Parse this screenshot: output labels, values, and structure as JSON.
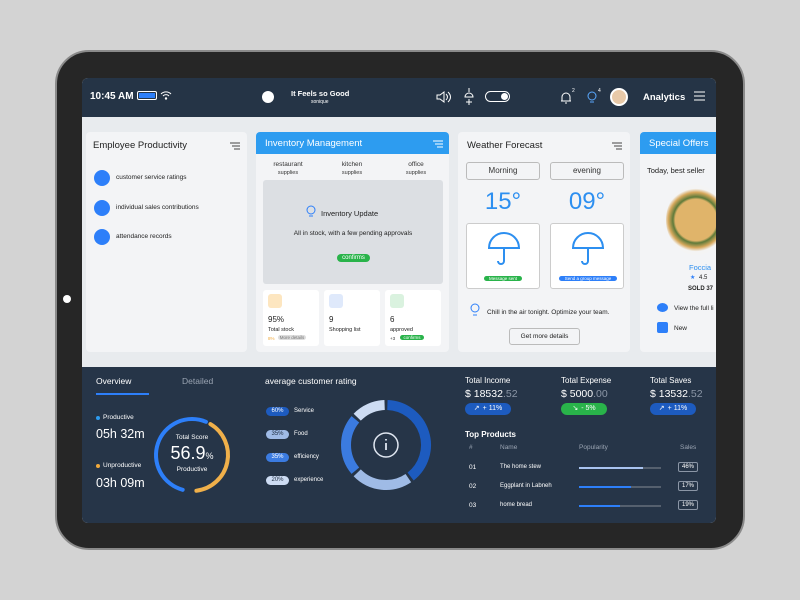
{
  "status_bar": {
    "time": "10:45 AM",
    "track": "It Feels so Good",
    "artist": "sonique",
    "bell_count": "2",
    "bulb_count": "4",
    "section": "Analytics"
  },
  "employee_productivity": {
    "title": "Employee Productivity",
    "items": [
      "customer service ratings",
      "individual sales contributions",
      "attendance records"
    ]
  },
  "inventory": {
    "title": "Inventory Management",
    "tabs": [
      {
        "name": "restaurant",
        "sub": "supplies"
      },
      {
        "name": "kitchen",
        "sub": "supplies"
      },
      {
        "name": "office",
        "sub": "supplies"
      }
    ],
    "update": {
      "title": "Inventory Update",
      "text": "All in stock, with a few pending approvals",
      "badge": "confirms"
    },
    "stats": [
      {
        "value": "95%",
        "label": "Total stock",
        "note_value": "8%",
        "note_label": "More details"
      },
      {
        "value": "9",
        "label": "Shopping list"
      },
      {
        "value": "6",
        "label": "approved",
        "note_value": "+3",
        "note_label": "confirms"
      }
    ]
  },
  "weather": {
    "title": "Weather Forecast",
    "periods": [
      {
        "name": "Morning",
        "temp": "15°",
        "button": "Message sent"
      },
      {
        "name": "evening",
        "temp": "09°",
        "button": "Send a group message"
      }
    ],
    "tip": "Chill in the air tonight. Optimize your team.",
    "action": "Get more details"
  },
  "offers": {
    "title": "Special Offers",
    "subtitle": "Today, best seller",
    "product": "Foccia",
    "rating": "4.5",
    "sold": "SOLD 37",
    "links": [
      "View the full li",
      "New"
    ]
  },
  "overview": {
    "tabs": [
      "Overview",
      "Detailed"
    ],
    "productive_label": "Productive",
    "productive_time": "05h 32m",
    "unproductive_label": "Unproductive",
    "unproductive_time": "03h 09m",
    "score_title": "Total Score",
    "score": 56.9,
    "score_unit": "%",
    "score_label": "Productive"
  },
  "rating": {
    "title": "average customer rating",
    "items": [
      {
        "value": 60,
        "label": "60%",
        "name": "Service",
        "color": "#1d5bbf"
      },
      {
        "value": 35,
        "label": "35%",
        "name": "Food",
        "color": "#9fbbe6"
      },
      {
        "value": 35,
        "label": "35%",
        "name": "efficiency",
        "color": "#3b7be0"
      },
      {
        "value": 20,
        "label": "20%",
        "name": "experience",
        "color": "#cddcf3"
      }
    ]
  },
  "totals": [
    {
      "title": "Total Income",
      "main": "$ 18532",
      "cents": ".52",
      "change": "+ 11%"
    },
    {
      "title": "Total Expense",
      "main": "$ 5000",
      "cents": ".00",
      "change": "- 5%"
    },
    {
      "title": "Total Saves",
      "main": "$ 13532",
      "cents": ".52",
      "change": "+ 11%"
    }
  ],
  "top_products": {
    "title": "Top Products",
    "headers": [
      "#",
      "Name",
      "Popularity",
      "Sales"
    ],
    "rows": [
      {
        "rank": "01",
        "name": "The home stew",
        "popularity": 78,
        "sales": "46%"
      },
      {
        "rank": "02",
        "name": "Eggplant in Labneh",
        "popularity": 63,
        "sales": "17%"
      },
      {
        "rank": "03",
        "name": "home bread",
        "popularity": 50,
        "sales": "19%"
      }
    ]
  }
}
